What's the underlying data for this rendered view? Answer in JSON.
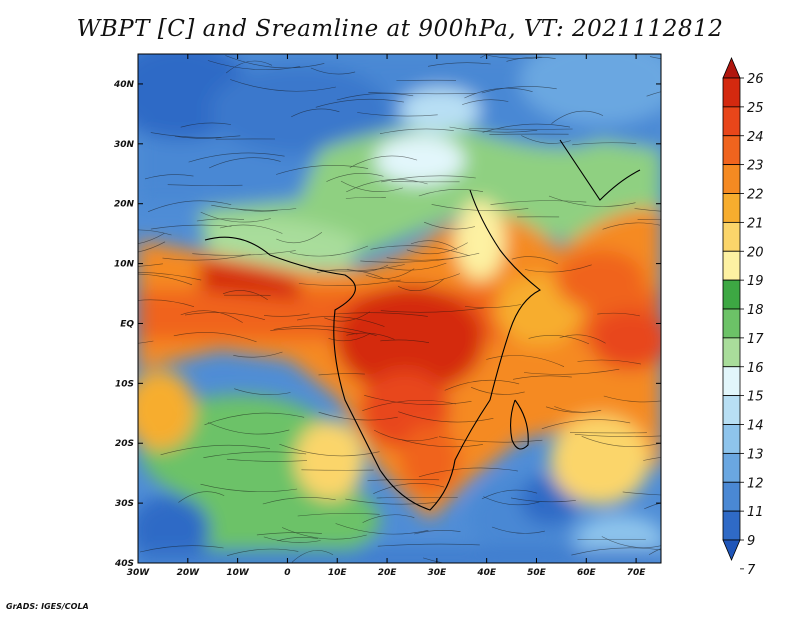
{
  "title": "WBPT [C] and Sreamline at 900hPa, VT: 2021112812",
  "credit": "GrADS: IGES/COLA",
  "map": {
    "lon_ticks": [
      "30W",
      "20W",
      "10W",
      "0",
      "10E",
      "20E",
      "30E",
      "40E",
      "50E",
      "60E",
      "70E"
    ],
    "lat_ticks": [
      "40N",
      "30N",
      "20N",
      "10N",
      "EQ",
      "10S",
      "20S",
      "30S",
      "40S"
    ]
  },
  "colorbar": {
    "labels": [
      "26",
      "25",
      "24",
      "23",
      "22",
      "21",
      "20",
      "19",
      "18",
      "17",
      "16",
      "15",
      "14",
      "13",
      "12",
      "11",
      "9",
      "7"
    ],
    "colors": [
      "#b0160e",
      "#d4290f",
      "#e8461a",
      "#f0641e",
      "#f58a22",
      "#f7ad2e",
      "#fbd56a",
      "#fdf1a2",
      "#3da843",
      "#6cc267",
      "#a9dd9b",
      "#e2f6fb",
      "#b8dff4",
      "#8ec4ec",
      "#6aa7e1",
      "#4a88d4",
      "#2f6ac6",
      "#1f55b8"
    ]
  }
}
